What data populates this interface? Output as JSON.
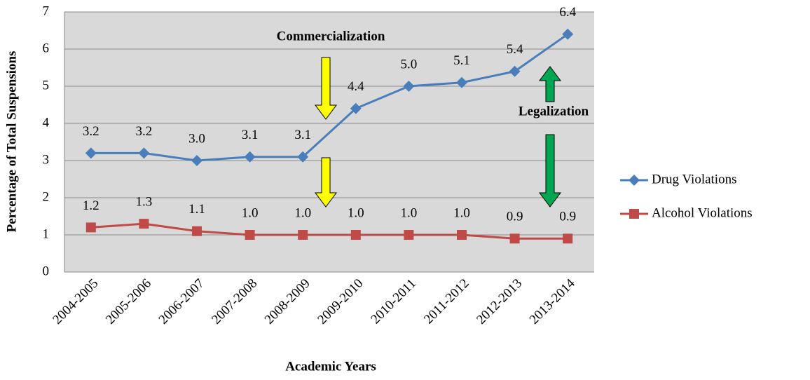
{
  "chart_data": {
    "type": "line",
    "x_label": "Academic Years",
    "y_label": "Percentage of Total Suspensions",
    "categories": [
      "2004-2005",
      "2005-2006",
      "2006-2007",
      "2007-2008",
      "2008-2009",
      "2009-2010",
      "2010-2011",
      "2011-2012",
      "2012-2013",
      "2013-2014"
    ],
    "series": [
      {
        "name": "Drug Violations",
        "color": "#4a7ebb",
        "marker": "diamond",
        "values": [
          3.2,
          3.2,
          3.0,
          3.1,
          3.1,
          4.4,
          5.0,
          5.1,
          5.4,
          6.4
        ],
        "value_labels": [
          "3.2",
          "3.2",
          "3.0",
          "3.1",
          "3.1",
          "4.4",
          "5.0",
          "5.1",
          "5.4",
          "6.4"
        ]
      },
      {
        "name": "Alcohol Violations",
        "color": "#be4b48",
        "marker": "square",
        "values": [
          1.2,
          1.3,
          1.1,
          1.0,
          1.0,
          1.0,
          1.0,
          1.0,
          0.9,
          0.9
        ],
        "value_labels": [
          "1.2",
          "1.3",
          "1.1",
          "1.0",
          "1.0",
          "1.0",
          "1.0",
          "1.0",
          "0.9",
          "0.9"
        ]
      }
    ],
    "ylim": [
      0,
      7
    ],
    "yticks": [
      0,
      1,
      2,
      3,
      4,
      5,
      6,
      7
    ],
    "grid": true,
    "legend": "right",
    "annotations": [
      "Commercialization",
      "Legalization"
    ]
  }
}
